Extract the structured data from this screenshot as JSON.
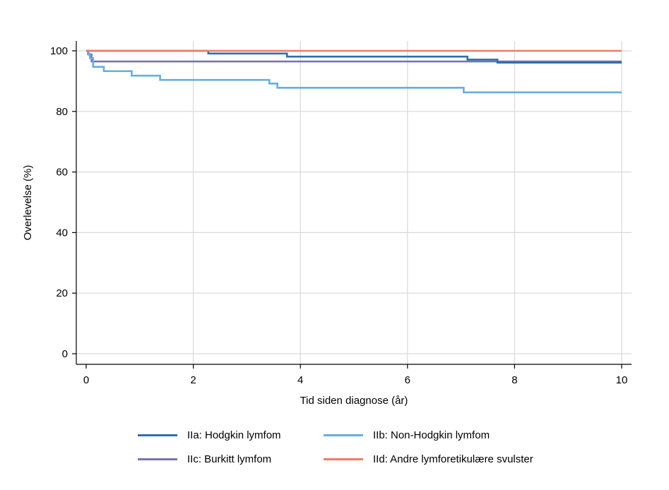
{
  "chart_data": {
    "type": "line",
    "step": true,
    "xlabel": "Tid siden diagnose (år)",
    "ylabel": "Overlevelse (%)",
    "xlim": [
      0,
      10
    ],
    "ylim": [
      0,
      100
    ],
    "xticks": [
      0,
      2,
      4,
      6,
      8,
      10
    ],
    "yticks": [
      0,
      20,
      40,
      60,
      80,
      100
    ],
    "grid": true,
    "legend_position": "bottom",
    "series": [
      {
        "name": "IIa: Hodgkin lymfom",
        "color": "#2e6fae",
        "x": [
          0,
          2.28,
          3.75,
          7.12,
          7.68,
          10
        ],
        "y": [
          100,
          99.1,
          98.1,
          97.1,
          96.1,
          96.1
        ]
      },
      {
        "name": "IIb: Non-Hodgkin lymfom",
        "color": "#69aed8",
        "x": [
          0,
          0.03,
          0.07,
          0.13,
          0.33,
          0.85,
          1.38,
          3.42,
          3.57,
          7.05,
          10
        ],
        "y": [
          100,
          99.0,
          97.6,
          94.7,
          93.3,
          91.8,
          90.4,
          89.2,
          87.8,
          86.3,
          86.3
        ]
      },
      {
        "name": "IIc: Burkitt lymfom",
        "color": "#7b72b2",
        "x": [
          0,
          0.04,
          0.1,
          10
        ],
        "y": [
          100,
          98.8,
          96.5,
          96.5
        ]
      },
      {
        "name": "IId: Andre lymforetikulære svulster",
        "color": "#ef7b67",
        "x": [
          0,
          10
        ],
        "y": [
          100,
          100
        ]
      }
    ]
  }
}
